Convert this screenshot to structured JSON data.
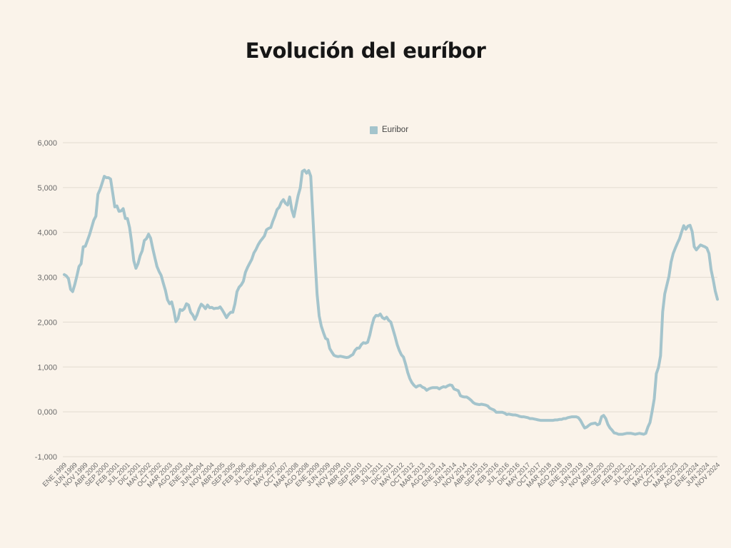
{
  "page": {
    "background": "#faf3ea"
  },
  "title": "Evolución del euríbor",
  "legend": {
    "items": [
      {
        "label": "Euribor",
        "color": "#a4c4cc"
      }
    ]
  },
  "chart_data": {
    "type": "line",
    "title": "Evolución del euríbor",
    "legend": [
      "Euribor"
    ],
    "legend_position": "top-center",
    "grid": true,
    "line_color": "#a4c4cc",
    "grid_color": "#e2dbd0",
    "x_unit": "month",
    "x_range": [
      "ENE 1999",
      "NOV 2024"
    ],
    "ylim": [
      -1,
      6
    ],
    "y_ticks": [
      6,
      5,
      4,
      3,
      2,
      1,
      0,
      -1
    ],
    "y_tick_labels": [
      "6,000",
      "5,000",
      "4,000",
      "3,000",
      "2,000",
      "1,000",
      "0,000",
      "-1,000"
    ],
    "x_tick_every_n_months": 5,
    "x_tick_labels": [
      "ENE 1999",
      "JUN 1999",
      "NOV 1999",
      "ABR 2000",
      "SEP 2000",
      "FEB 2001",
      "JUL 2001",
      "DIC 2001",
      "MAY 2002",
      "OCT 2002",
      "MAR 2003",
      "AGO 2003",
      "ENE 2004",
      "JUN 2004",
      "NOV 2004",
      "ABR 2005",
      "SEP 2005",
      "FEB 2006",
      "JUL 2006",
      "DIC 2006",
      "MAY 2007",
      "OCT 2007",
      "MAR 2008",
      "AGO 2008",
      "ENE 2009",
      "JUN 2009",
      "NOV 2009",
      "ABR 2010",
      "SEP 2010",
      "FEB 2011",
      "JUL 2011",
      "DIC 2011",
      "MAY 2012",
      "OCT 2012",
      "MAR 2013",
      "AGO 2013",
      "ENE 2014",
      "JUN 2014",
      "NOV 2014",
      "ABR 2015",
      "SEP 2015",
      "FEB 2016",
      "JUL 2016",
      "DIC 2016",
      "MAY 2017",
      "OCT 2017",
      "MAR 2018",
      "AGO 2018",
      "ENE 2019",
      "JUN 2019",
      "NOV 2019",
      "ABR 2020",
      "SEP 2020",
      "FEB 2021",
      "JUL 2021",
      "DIC 2021",
      "MAY 2022",
      "OCT 2022",
      "MAR 2023",
      "AGO 2023",
      "ENE 2024",
      "JUN 2024",
      "NOV 2024"
    ],
    "series": [
      {
        "name": "Euribor",
        "values": [
          3.06,
          3.03,
          2.97,
          2.73,
          2.68,
          2.84,
          3.03,
          3.24,
          3.3,
          3.68,
          3.69,
          3.82,
          3.95,
          4.11,
          4.27,
          4.36,
          4.85,
          4.96,
          5.1,
          5.25,
          5.22,
          5.22,
          5.19,
          4.88,
          4.57,
          4.59,
          4.47,
          4.48,
          4.53,
          4.31,
          4.31,
          4.11,
          3.77,
          3.37,
          3.2,
          3.3,
          3.48,
          3.59,
          3.82,
          3.86,
          3.96,
          3.87,
          3.64,
          3.44,
          3.24,
          3.13,
          3.04,
          2.87,
          2.71,
          2.5,
          2.41,
          2.45,
          2.26,
          2.01,
          2.08,
          2.28,
          2.26,
          2.3,
          2.41,
          2.38,
          2.22,
          2.16,
          2.06,
          2.16,
          2.3,
          2.4,
          2.36,
          2.3,
          2.38,
          2.32,
          2.33,
          2.3,
          2.31,
          2.31,
          2.34,
          2.27,
          2.19,
          2.1,
          2.17,
          2.22,
          2.22,
          2.41,
          2.68,
          2.78,
          2.83,
          2.91,
          3.11,
          3.22,
          3.31,
          3.4,
          3.54,
          3.62,
          3.72,
          3.8,
          3.86,
          3.92,
          4.06,
          4.09,
          4.11,
          4.25,
          4.37,
          4.51,
          4.56,
          4.67,
          4.73,
          4.65,
          4.61,
          4.79,
          4.5,
          4.35,
          4.59,
          4.82,
          4.99,
          5.36,
          5.39,
          5.32,
          5.38,
          5.25,
          4.35,
          3.45,
          2.62,
          2.14,
          1.91,
          1.77,
          1.64,
          1.61,
          1.41,
          1.33,
          1.26,
          1.24,
          1.23,
          1.24,
          1.23,
          1.22,
          1.21,
          1.22,
          1.25,
          1.28,
          1.37,
          1.42,
          1.42,
          1.5,
          1.54,
          1.53,
          1.55,
          1.71,
          1.92,
          2.09,
          2.15,
          2.14,
          2.18,
          2.1,
          2.07,
          2.11,
          2.04,
          2.0,
          1.84,
          1.68,
          1.5,
          1.37,
          1.27,
          1.22,
          1.06,
          0.88,
          0.74,
          0.65,
          0.59,
          0.55,
          0.58,
          0.59,
          0.55,
          0.53,
          0.48,
          0.51,
          0.53,
          0.54,
          0.54,
          0.54,
          0.51,
          0.54,
          0.56,
          0.55,
          0.58,
          0.6,
          0.59,
          0.51,
          0.49,
          0.47,
          0.36,
          0.34,
          0.33,
          0.33,
          0.3,
          0.26,
          0.21,
          0.18,
          0.17,
          0.16,
          0.17,
          0.16,
          0.15,
          0.13,
          0.08,
          0.06,
          0.04,
          -0.01,
          -0.01,
          -0.01,
          -0.01,
          -0.03,
          -0.06,
          -0.05,
          -0.06,
          -0.07,
          -0.07,
          -0.08,
          -0.1,
          -0.11,
          -0.11,
          -0.12,
          -0.13,
          -0.15,
          -0.15,
          -0.16,
          -0.17,
          -0.18,
          -0.19,
          -0.19,
          -0.19,
          -0.19,
          -0.19,
          -0.19,
          -0.19,
          -0.18,
          -0.18,
          -0.17,
          -0.17,
          -0.15,
          -0.15,
          -0.13,
          -0.12,
          -0.11,
          -0.11,
          -0.11,
          -0.13,
          -0.19,
          -0.28,
          -0.36,
          -0.34,
          -0.3,
          -0.27,
          -0.26,
          -0.25,
          -0.29,
          -0.27,
          -0.11,
          -0.08,
          -0.15,
          -0.28,
          -0.36,
          -0.41,
          -0.47,
          -0.48,
          -0.5,
          -0.5,
          -0.5,
          -0.49,
          -0.48,
          -0.48,
          -0.48,
          -0.49,
          -0.5,
          -0.49,
          -0.48,
          -0.49,
          -0.5,
          -0.48,
          -0.34,
          -0.24,
          0.01,
          0.29,
          0.85,
          0.99,
          1.25,
          2.23,
          2.63,
          2.83,
          3.02,
          3.34,
          3.53,
          3.65,
          3.76,
          3.86,
          4.01,
          4.15,
          4.07,
          4.14,
          4.16,
          4.02,
          3.68,
          3.61,
          3.67,
          3.72,
          3.7,
          3.68,
          3.65,
          3.53,
          3.17,
          2.94,
          2.69,
          2.51
        ]
      }
    ]
  }
}
